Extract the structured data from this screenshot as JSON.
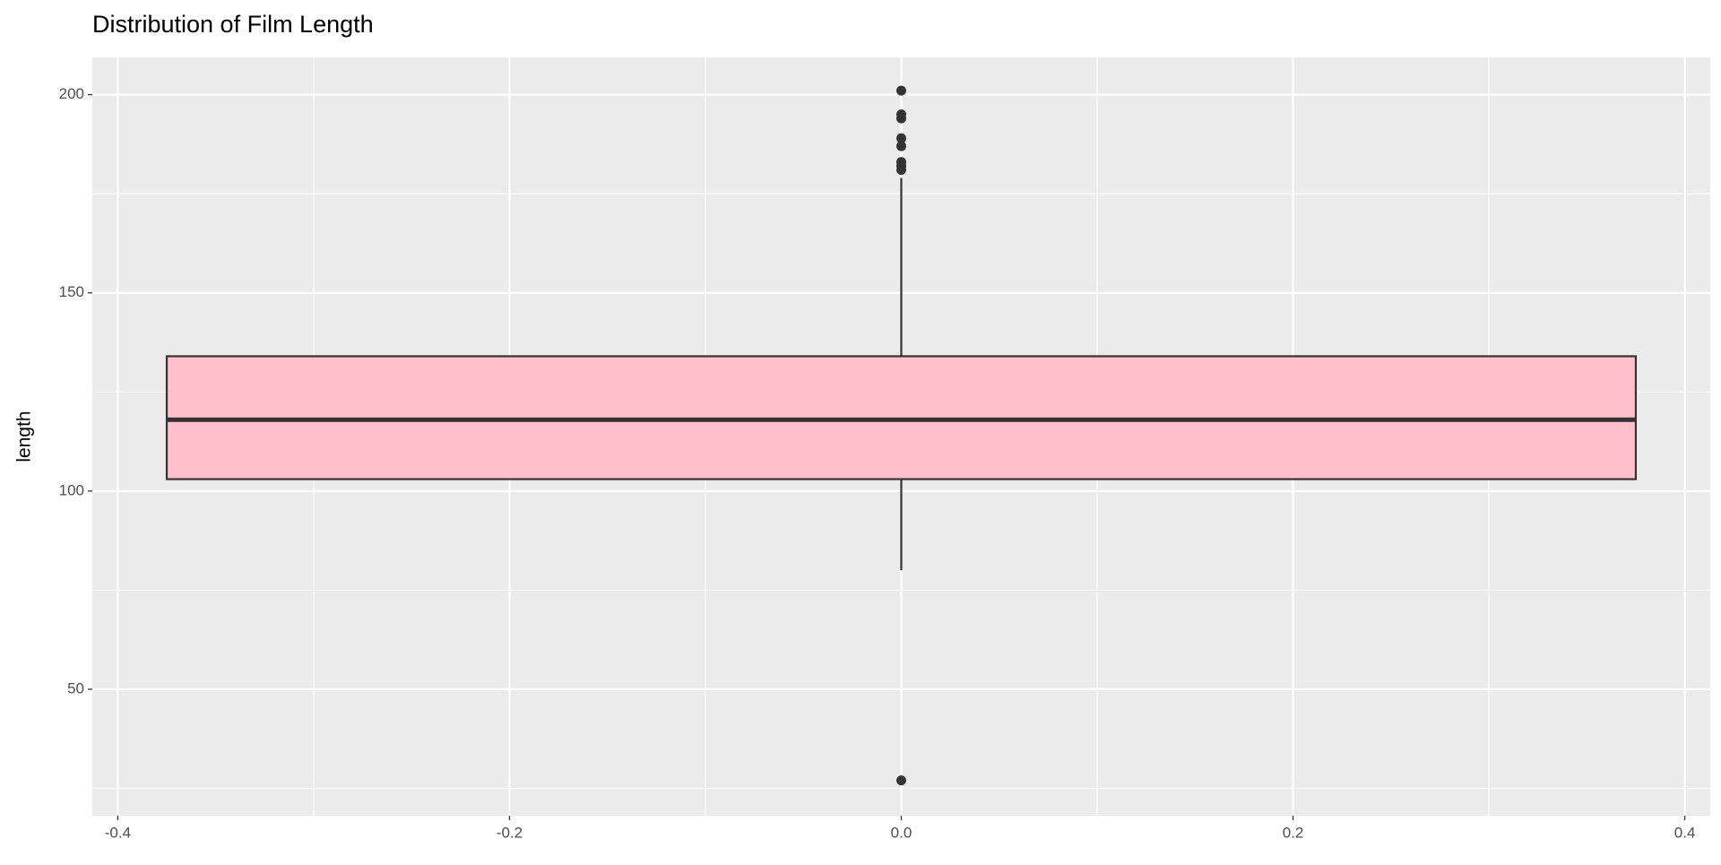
{
  "chart_data": {
    "type": "box",
    "title": "Distribution of Film Length",
    "ylabel": "length",
    "boxes": [
      {
        "x": 0,
        "whislo": 80,
        "q1": 103,
        "median": 118,
        "q3": 134,
        "whishi": 179,
        "outliers": [
          201,
          195,
          194,
          189,
          187,
          183,
          182,
          181,
          27
        ]
      }
    ],
    "fill": "#ffc0cb",
    "stroke": "#333333",
    "xlim": [
      -0.413,
      0.413
    ],
    "xticks": [
      -0.4,
      -0.2,
      {
        "value": 0,
        "label": "0.0"
      },
      0.2,
      0.4
    ],
    "xminor_ticks": [
      -0.3,
      -0.1,
      0.1,
      0.3
    ],
    "ylim": [
      18.1,
      209.4
    ],
    "yticks": [
      50,
      100,
      150,
      200
    ],
    "yminor_ticks": [
      25,
      75,
      125,
      175
    ],
    "grid": true
  }
}
